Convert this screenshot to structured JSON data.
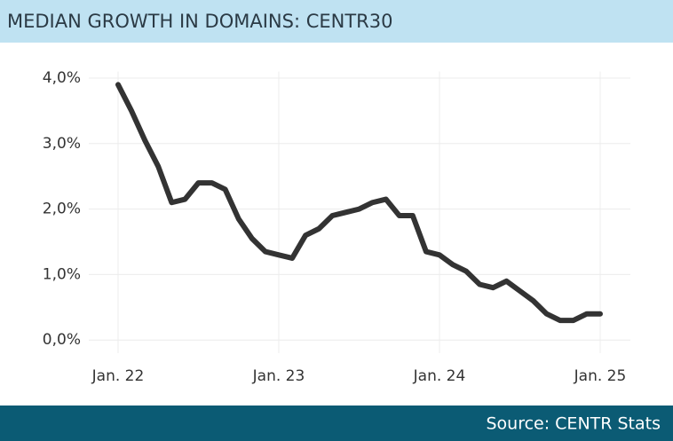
{
  "chart_data": {
    "type": "line",
    "title": "MEDIAN GROWTH IN DOMAINS: CENTR30",
    "source": "Source: CENTR Stats",
    "categories": [
      "Jan. 22",
      null,
      null,
      null,
      null,
      null,
      null,
      null,
      null,
      null,
      null,
      null,
      "Jan. 23",
      null,
      null,
      null,
      null,
      null,
      null,
      null,
      null,
      null,
      null,
      null,
      "Jan. 24",
      null,
      null,
      null,
      null,
      null,
      null,
      null,
      null,
      null,
      null,
      null,
      "Jan. 25"
    ],
    "values": [
      3.9,
      3.5,
      3.05,
      2.65,
      2.1,
      2.15,
      2.4,
      2.4,
      2.3,
      1.85,
      1.55,
      1.35,
      1.3,
      1.25,
      1.6,
      1.7,
      1.9,
      1.95,
      2.0,
      2.1,
      2.15,
      1.9,
      1.9,
      1.35,
      1.3,
      1.15,
      1.05,
      0.85,
      0.8,
      0.9,
      0.75,
      0.6,
      0.4,
      0.3,
      0.3,
      0.4,
      0.4
    ],
    "color": "#333333",
    "ylim": [
      -0.2,
      4.1
    ],
    "yticks": [
      {
        "value": 0,
        "label": "0,0%"
      },
      {
        "value": 1,
        "label": "1,0%"
      },
      {
        "value": 2,
        "label": "2,0%"
      },
      {
        "value": 3,
        "label": "3,0%"
      },
      {
        "value": 4,
        "label": "4,0%"
      }
    ],
    "grid": true
  }
}
